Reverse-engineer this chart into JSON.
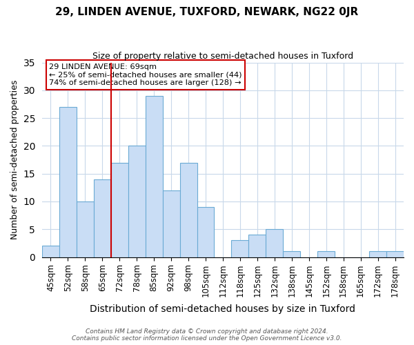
{
  "title": "29, LINDEN AVENUE, TUXFORD, NEWARK, NG22 0JR",
  "subtitle": "Size of property relative to semi-detached houses in Tuxford",
  "xlabel": "Distribution of semi-detached houses by size in Tuxford",
  "ylabel": "Number of semi-detached properties",
  "bar_labels": [
    "45sqm",
    "52sqm",
    "58sqm",
    "65sqm",
    "72sqm",
    "78sqm",
    "85sqm",
    "92sqm",
    "98sqm",
    "105sqm",
    "112sqm",
    "118sqm",
    "125sqm",
    "132sqm",
    "138sqm",
    "145sqm",
    "152sqm",
    "158sqm",
    "165sqm",
    "172sqm",
    "178sqm"
  ],
  "bar_values": [
    2,
    27,
    10,
    14,
    17,
    20,
    29,
    12,
    17,
    9,
    0,
    3,
    4,
    5,
    1,
    0,
    1,
    0,
    0,
    1,
    1
  ],
  "bar_color": "#c9ddf5",
  "bar_edge_color": "#6aaad4",
  "ylim": [
    0,
    35
  ],
  "yticks": [
    0,
    5,
    10,
    15,
    20,
    25,
    30,
    35
  ],
  "property_line_index": 4,
  "property_line_label": "29 LINDEN AVENUE: 69sqm",
  "annotation_smaller": "← 25% of semi-detached houses are smaller (44)",
  "annotation_larger": "74% of semi-detached houses are larger (128) →",
  "annotation_box_color": "#ffffff",
  "annotation_box_edge_color": "#cc0000",
  "line_color": "#cc0000",
  "footer1": "Contains HM Land Registry data © Crown copyright and database right 2024.",
  "footer2": "Contains public sector information licensed under the Open Government Licence v3.0."
}
